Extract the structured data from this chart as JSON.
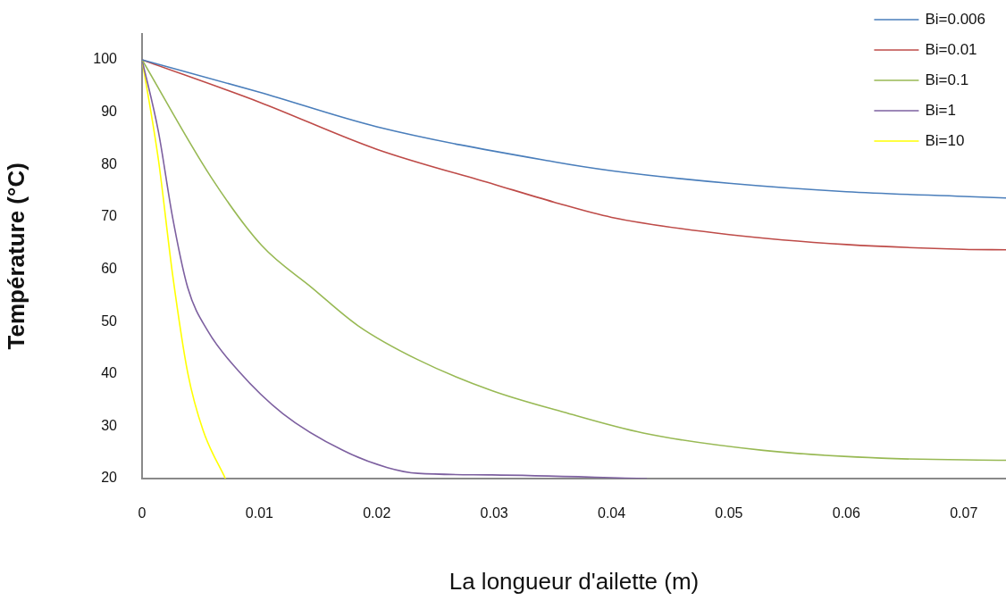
{
  "chart_data": {
    "type": "line",
    "xlabel": "La longueur d'ailette (m)",
    "ylabel": "Température (°C)",
    "xlim": [
      0,
      0.0736
    ],
    "xticks": [
      0,
      0.01,
      0.02,
      0.03,
      0.04,
      0.05,
      0.06,
      0.07
    ],
    "ylim": [
      20,
      105
    ],
    "yticks": [
      20,
      30,
      40,
      50,
      60,
      70,
      80,
      90,
      100
    ],
    "grid": false,
    "legend": "top right",
    "marker": "none",
    "line_style": "solid",
    "series": [
      {
        "name": "Bi=0.006",
        "color": "#4a7ebb",
        "x": [
          0,
          0.01,
          0.02,
          0.0351,
          0.04,
          0.05,
          0.06,
          0.07,
          0.0736
        ],
        "values": [
          100,
          93.8,
          87.2,
          80.5,
          78.8,
          76.4,
          74.8,
          73.9,
          73.6
        ]
      },
      {
        "name": "Bi=0.01",
        "color": "#be4b48",
        "x": [
          0,
          0.01,
          0.02,
          0.03,
          0.0351,
          0.04,
          0.05,
          0.06,
          0.07,
          0.0736
        ],
        "values": [
          100,
          91.9,
          82.9,
          76.2,
          72.8,
          69.9,
          66.6,
          64.7,
          63.8,
          63.7
        ]
      },
      {
        "name": "Bi=0.1",
        "color": "#98b954",
        "x": [
          0,
          0.0059,
          0.0102,
          0.0145,
          0.0184,
          0.0235,
          0.0298,
          0.0359,
          0.0427,
          0.0529,
          0.063,
          0.0736
        ],
        "values": [
          100,
          77.5,
          64.5,
          56.4,
          49.2,
          42.7,
          36.8,
          32.7,
          28.7,
          25.4,
          23.9,
          23.5
        ]
      },
      {
        "name": "Bi=1",
        "color": "#7d60a0",
        "x": [
          0,
          0.0014,
          0.0026,
          0.0039,
          0.0056,
          0.0082,
          0.012,
          0.0171,
          0.0209,
          0.0235,
          0.0298,
          0.043
        ],
        "values": [
          100,
          86.2,
          69.9,
          56.4,
          48.2,
          40.6,
          32.4,
          25.4,
          22.1,
          21,
          20.7,
          20
        ]
      },
      {
        "name": "Bi=10",
        "color": "#ffff00",
        "x": [
          0,
          0.0014,
          0.0026,
          0.0039,
          0.0052,
          0.0071
        ],
        "values": [
          100,
          80.8,
          59,
          40.1,
          29.2,
          20
        ]
      }
    ]
  }
}
